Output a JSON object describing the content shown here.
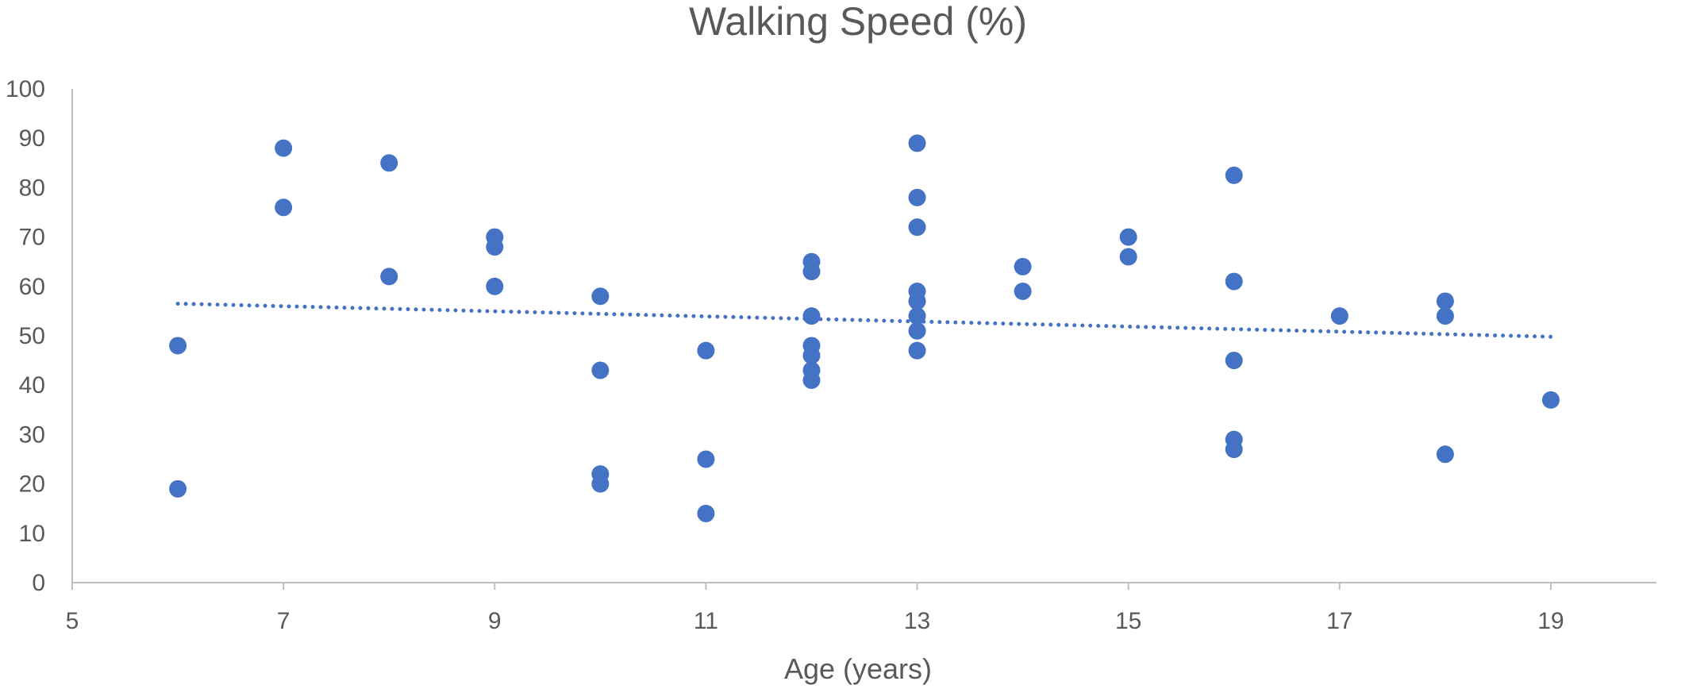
{
  "chart_data": {
    "type": "scatter",
    "title": "Walking Speed (%)",
    "xlabel": "Age (years)",
    "ylabel": "",
    "xlim": [
      5,
      20
    ],
    "ylim": [
      0,
      100
    ],
    "xticks": [
      5,
      7,
      9,
      11,
      13,
      15,
      17,
      19
    ],
    "yticks": [
      0,
      10,
      20,
      30,
      40,
      50,
      60,
      70,
      80,
      90,
      100
    ],
    "grid": false,
    "legend": "none",
    "colors": {
      "marker": "#4472C4",
      "trendline": "#4472C4",
      "axis": "#BFBFBF",
      "text": "#595959"
    },
    "series": [
      {
        "points": [
          [
            6,
            48
          ],
          [
            6,
            19
          ],
          [
            7,
            88
          ],
          [
            7,
            76
          ],
          [
            8,
            85
          ],
          [
            8,
            62
          ],
          [
            9,
            70
          ],
          [
            9,
            68
          ],
          [
            9,
            60
          ],
          [
            10,
            58
          ],
          [
            10,
            43
          ],
          [
            10,
            22
          ],
          [
            10,
            20
          ],
          [
            11,
            47
          ],
          [
            11,
            25
          ],
          [
            11,
            14
          ],
          [
            12,
            65
          ],
          [
            12,
            63
          ],
          [
            12,
            54
          ],
          [
            12,
            48
          ],
          [
            12,
            46
          ],
          [
            12,
            43
          ],
          [
            12,
            41
          ],
          [
            13,
            89
          ],
          [
            13,
            78
          ],
          [
            13,
            72
          ],
          [
            13,
            59
          ],
          [
            13,
            57
          ],
          [
            13,
            54
          ],
          [
            13,
            51
          ],
          [
            13,
            47
          ],
          [
            14,
            64
          ],
          [
            14,
            59
          ],
          [
            15,
            70
          ],
          [
            15,
            66
          ],
          [
            16,
            82.5
          ],
          [
            16,
            61
          ],
          [
            16,
            45
          ],
          [
            16,
            29
          ],
          [
            16,
            27
          ],
          [
            17,
            54
          ],
          [
            18,
            57
          ],
          [
            18,
            54
          ],
          [
            18,
            26
          ],
          [
            19,
            37
          ]
        ]
      }
    ],
    "trendline": {
      "type": "linear",
      "x": [
        6,
        19
      ],
      "y": [
        56.5,
        49.8
      ],
      "style": "dotted"
    }
  }
}
